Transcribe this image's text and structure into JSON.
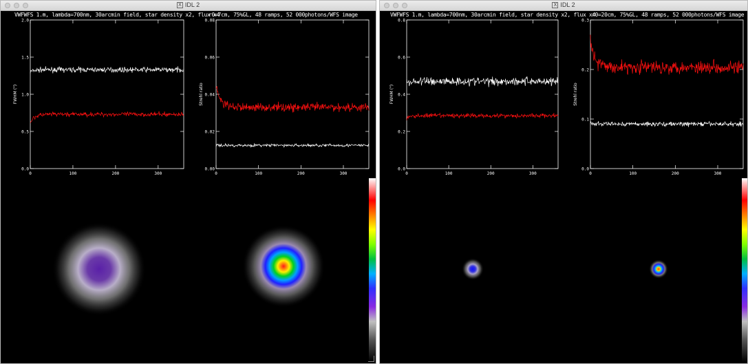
{
  "windows": [
    {
      "title": "IDL 2",
      "left_plot_title": "VWFWFS 1.m, lambda=700nm, 30arcmin field, star density x2, flux x4",
      "right_plot_title": "r0=7cm, 75%GL, 48 ramps, 52 000photons/WFS image",
      "left_plot": {
        "ylabel": "FWHM (\")",
        "yticks": [
          "0.0",
          "0.5",
          "1.0",
          "1.5",
          "2.0"
        ],
        "xticks": [
          "0",
          "100",
          "200",
          "300"
        ],
        "ylim": [
          0,
          2.0
        ],
        "series": [
          {
            "color": "#ffffff",
            "start": 1.3,
            "level": 1.33,
            "noise": 0.05
          },
          {
            "color": "#ff1010",
            "start": 0.62,
            "level": 0.73,
            "noise": 0.045
          }
        ]
      },
      "right_plot": {
        "ylabel": "Strehl ratio",
        "yticks": [
          "0.00",
          "0.02",
          "0.04",
          "0.06",
          "0.08"
        ],
        "xticks": [
          "0",
          "100",
          "200",
          "300"
        ],
        "ylim": [
          0,
          0.08
        ],
        "series": [
          {
            "color": "#ffffff",
            "start": 0.0125,
            "level": 0.0125,
            "noise": 0.0012
          },
          {
            "color": "#ff1010",
            "start": 0.045,
            "level": 0.033,
            "noise": 0.0035
          }
        ]
      },
      "psf_left": "broad",
      "psf_right": "medium"
    },
    {
      "title": "IDL 2",
      "left_plot_title": "VWFWFS 1.m, lambda=700nm, 30arcmin field, star density x2, flux x4",
      "right_plot_title": "r0=20cm, 75%GL, 48 ramps, 52 000photons/WFS image",
      "left_plot": {
        "ylabel": "FWHM (\")",
        "yticks": [
          "0.0",
          "0.2",
          "0.4",
          "0.6",
          "0.8"
        ],
        "xticks": [
          "0",
          "100",
          "200",
          "300"
        ],
        "ylim": [
          0,
          0.8
        ],
        "series": [
          {
            "color": "#ffffff",
            "start": 0.46,
            "level": 0.47,
            "noise": 0.035
          },
          {
            "color": "#ff1010",
            "start": 0.27,
            "level": 0.285,
            "noise": 0.018
          }
        ]
      },
      "right_plot": {
        "ylabel": "Strehl ratio",
        "yticks": [
          "0.0",
          "0.1",
          "0.2",
          "0.3"
        ],
        "xticks": [
          "0",
          "100",
          "200",
          "300"
        ],
        "ylim": [
          0,
          0.3
        ],
        "series": [
          {
            "color": "#ffffff",
            "start": 0.09,
            "level": 0.09,
            "noise": 0.007
          },
          {
            "color": "#ff1010",
            "start": 0.26,
            "level": 0.205,
            "noise": 0.02
          }
        ]
      },
      "psf_left": "small",
      "psf_right": "small"
    }
  ]
}
